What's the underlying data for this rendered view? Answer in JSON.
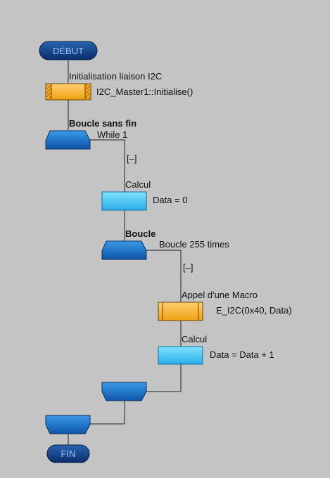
{
  "flowchart": {
    "start": {
      "label": "DÉBUT"
    },
    "end": {
      "label": "FIN"
    },
    "init": {
      "title": "Initialisation liaison I2C",
      "content": "I2C_Master1::Initialise()"
    },
    "loop_outer": {
      "title": "Boucle sans fin",
      "condition": "While 1",
      "collapse": "[–]"
    },
    "calc1": {
      "title": "Calcul",
      "content": "Data = 0"
    },
    "loop_inner": {
      "title": "Boucle",
      "condition": "Boucle 255 times",
      "collapse": "[–]"
    },
    "macro": {
      "title": "Appel d'une Macro",
      "content": "E_I2C(0x40, Data)"
    },
    "calc2": {
      "title": "Calcul",
      "content": "Data = Data + 1"
    }
  },
  "colors": {
    "background": "#c4c4c4",
    "terminal": "#0c3d82",
    "loop": "#1a73c9",
    "calc": "#3fc2f2",
    "macro": "#ffb830"
  }
}
